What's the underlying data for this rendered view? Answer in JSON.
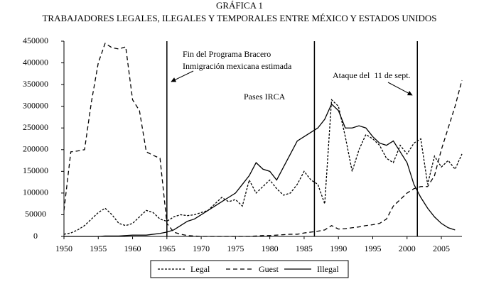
{
  "chart_data": {
    "type": "line",
    "title": "GRÁFICA 1",
    "subtitle": "TRABAJADORES LEGALES, ILEGALES Y TEMPORALES ENTRE MÉXICO Y ESTADOS UNIDOS",
    "x": [
      1950,
      1951,
      1952,
      1953,
      1954,
      1955,
      1956,
      1957,
      1958,
      1959,
      1960,
      1961,
      1962,
      1963,
      1964,
      1965,
      1966,
      1967,
      1968,
      1969,
      1970,
      1971,
      1972,
      1973,
      1974,
      1975,
      1976,
      1977,
      1978,
      1979,
      1980,
      1981,
      1982,
      1983,
      1984,
      1985,
      1986,
      1987,
      1988,
      1989,
      1990,
      1991,
      1992,
      1993,
      1994,
      1995,
      1996,
      1997,
      1998,
      1999,
      2000,
      2001,
      2002,
      2003,
      2004,
      2005,
      2006,
      2007,
      2008
    ],
    "series": [
      {
        "name": "Legal",
        "color": "#000000",
        "dash": "3,2",
        "values": [
          5000,
          8000,
          15000,
          25000,
          40000,
          55000,
          65000,
          50000,
          30000,
          25000,
          30000,
          45000,
          60000,
          55000,
          40000,
          35000,
          45000,
          50000,
          48000,
          50000,
          55000,
          60000,
          75000,
          90000,
          80000,
          85000,
          70000,
          130000,
          100000,
          115000,
          130000,
          110000,
          95000,
          100000,
          120000,
          150000,
          130000,
          120000,
          75000,
          315000,
          300000,
          230000,
          150000,
          200000,
          235000,
          225000,
          210000,
          180000,
          170000,
          210000,
          190000,
          215000,
          225000,
          120000,
          185000,
          160000,
          175000,
          155000,
          190000
        ]
      },
      {
        "name": "Guest",
        "color": "#000000",
        "dash": "6,4",
        "values": [
          60000,
          195000,
          197000,
          200000,
          310000,
          400000,
          445000,
          435000,
          432000,
          437000,
          315000,
          290000,
          195000,
          187000,
          180000,
          30000,
          10000,
          5000,
          2000,
          1000,
          0,
          0,
          0,
          0,
          0,
          0,
          0,
          0,
          1000,
          2000,
          2000,
          3000,
          4000,
          5000,
          5000,
          8000,
          10000,
          12000,
          15000,
          25000,
          17000,
          18000,
          20000,
          22000,
          25000,
          27000,
          30000,
          40000,
          70000,
          85000,
          100000,
          110000,
          115000,
          115000,
          140000,
          200000,
          250000,
          300000,
          360000
        ]
      },
      {
        "name": "Illegal",
        "color": "#000000",
        "dash": "",
        "values": [
          0,
          0,
          0,
          0,
          0,
          0,
          1000,
          1000,
          1000,
          2000,
          3000,
          3000,
          3000,
          5000,
          7000,
          10000,
          15000,
          25000,
          35000,
          40000,
          50000,
          60000,
          70000,
          80000,
          90000,
          100000,
          120000,
          140000,
          170000,
          155000,
          150000,
          130000,
          160000,
          190000,
          220000,
          230000,
          240000,
          250000,
          270000,
          305000,
          290000,
          250000,
          250000,
          255000,
          250000,
          230000,
          215000,
          210000,
          220000,
          195000,
          170000,
          120000,
          90000,
          65000,
          45000,
          30000,
          20000,
          15000,
          null
        ]
      }
    ],
    "xlim": [
      1950,
      2008
    ],
    "xticks": [
      1950,
      1955,
      1960,
      1965,
      1970,
      1975,
      1980,
      1985,
      1990,
      1995,
      2000,
      2005
    ],
    "ylim": [
      0,
      450000
    ],
    "yticks": [
      0,
      50000,
      100000,
      150000,
      200000,
      250000,
      300000,
      350000,
      400000,
      450000
    ],
    "vlines": [
      1965,
      1986.5,
      2001.5
    ],
    "annotations": [
      "Fin del Programa Bracero",
      "Inmigración mexicana estimada",
      "Pases IRCA",
      "Ataque del  11 de sept."
    ],
    "legend": "bottom"
  }
}
